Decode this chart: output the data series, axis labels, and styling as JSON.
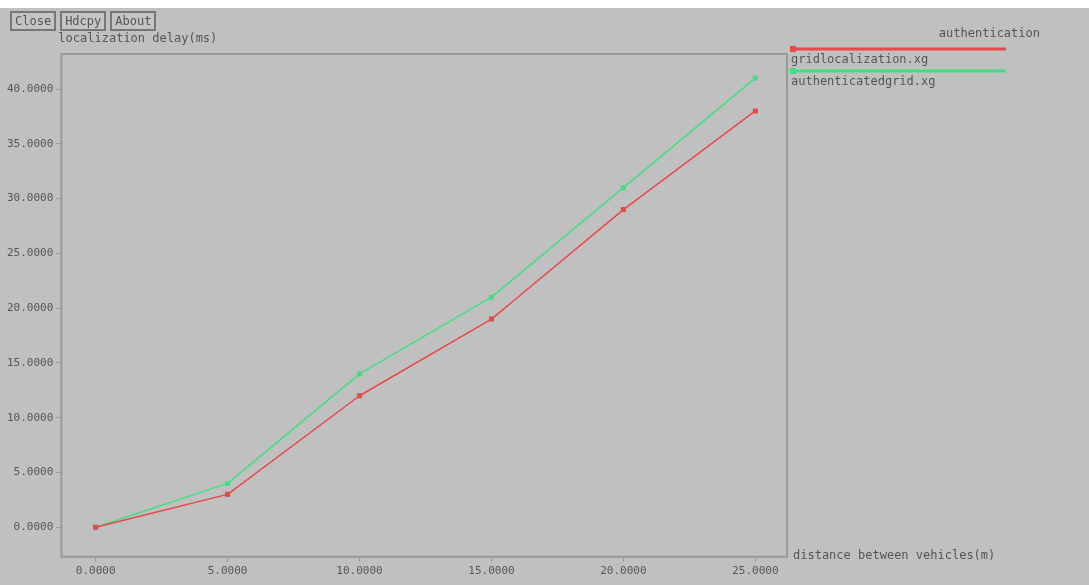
{
  "chart_data": {
    "type": "line",
    "ylabel": "localization delay(ms)",
    "xlabel": "distance between vehicles(m)",
    "legend_title": "authentication",
    "annotations": [
      "Close",
      "Hdcpy",
      "About"
    ],
    "x": [
      0,
      5,
      10,
      15,
      20,
      25
    ],
    "series": [
      {
        "name": "gridlocalization.xg",
        "color": "#e84848",
        "values": [
          0,
          3,
          12,
          19,
          29,
          38
        ]
      },
      {
        "name": "authenticatedgrid.xg",
        "color": "#40e080",
        "values": [
          0,
          4,
          14,
          21,
          31,
          41
        ]
      }
    ],
    "xlim": [
      -1.3,
      26.2
    ],
    "ylim": [
      -2.7,
      43.2
    ],
    "xticks": [
      {
        "value": 0,
        "label": "0.0000"
      },
      {
        "value": 5,
        "label": "5.0000"
      },
      {
        "value": 10,
        "label": "10.0000"
      },
      {
        "value": 15,
        "label": "15.0000"
      },
      {
        "value": 20,
        "label": "20.0000"
      },
      {
        "value": 25,
        "label": "25.0000"
      }
    ],
    "yticks": [
      {
        "value": 0,
        "label": "0.0000"
      },
      {
        "value": 5,
        "label": "5.0000"
      },
      {
        "value": 10,
        "label": "10.0000"
      },
      {
        "value": 15,
        "label": "15.0000"
      },
      {
        "value": 20,
        "label": "20.0000"
      },
      {
        "value": 25,
        "label": "25.0000"
      },
      {
        "value": 30,
        "label": "30.0000"
      },
      {
        "value": 35,
        "label": "35.0000"
      },
      {
        "value": 40,
        "label": "40.0000"
      }
    ],
    "grid": false,
    "legend": "right",
    "marker": "square",
    "line_style": "solid"
  }
}
